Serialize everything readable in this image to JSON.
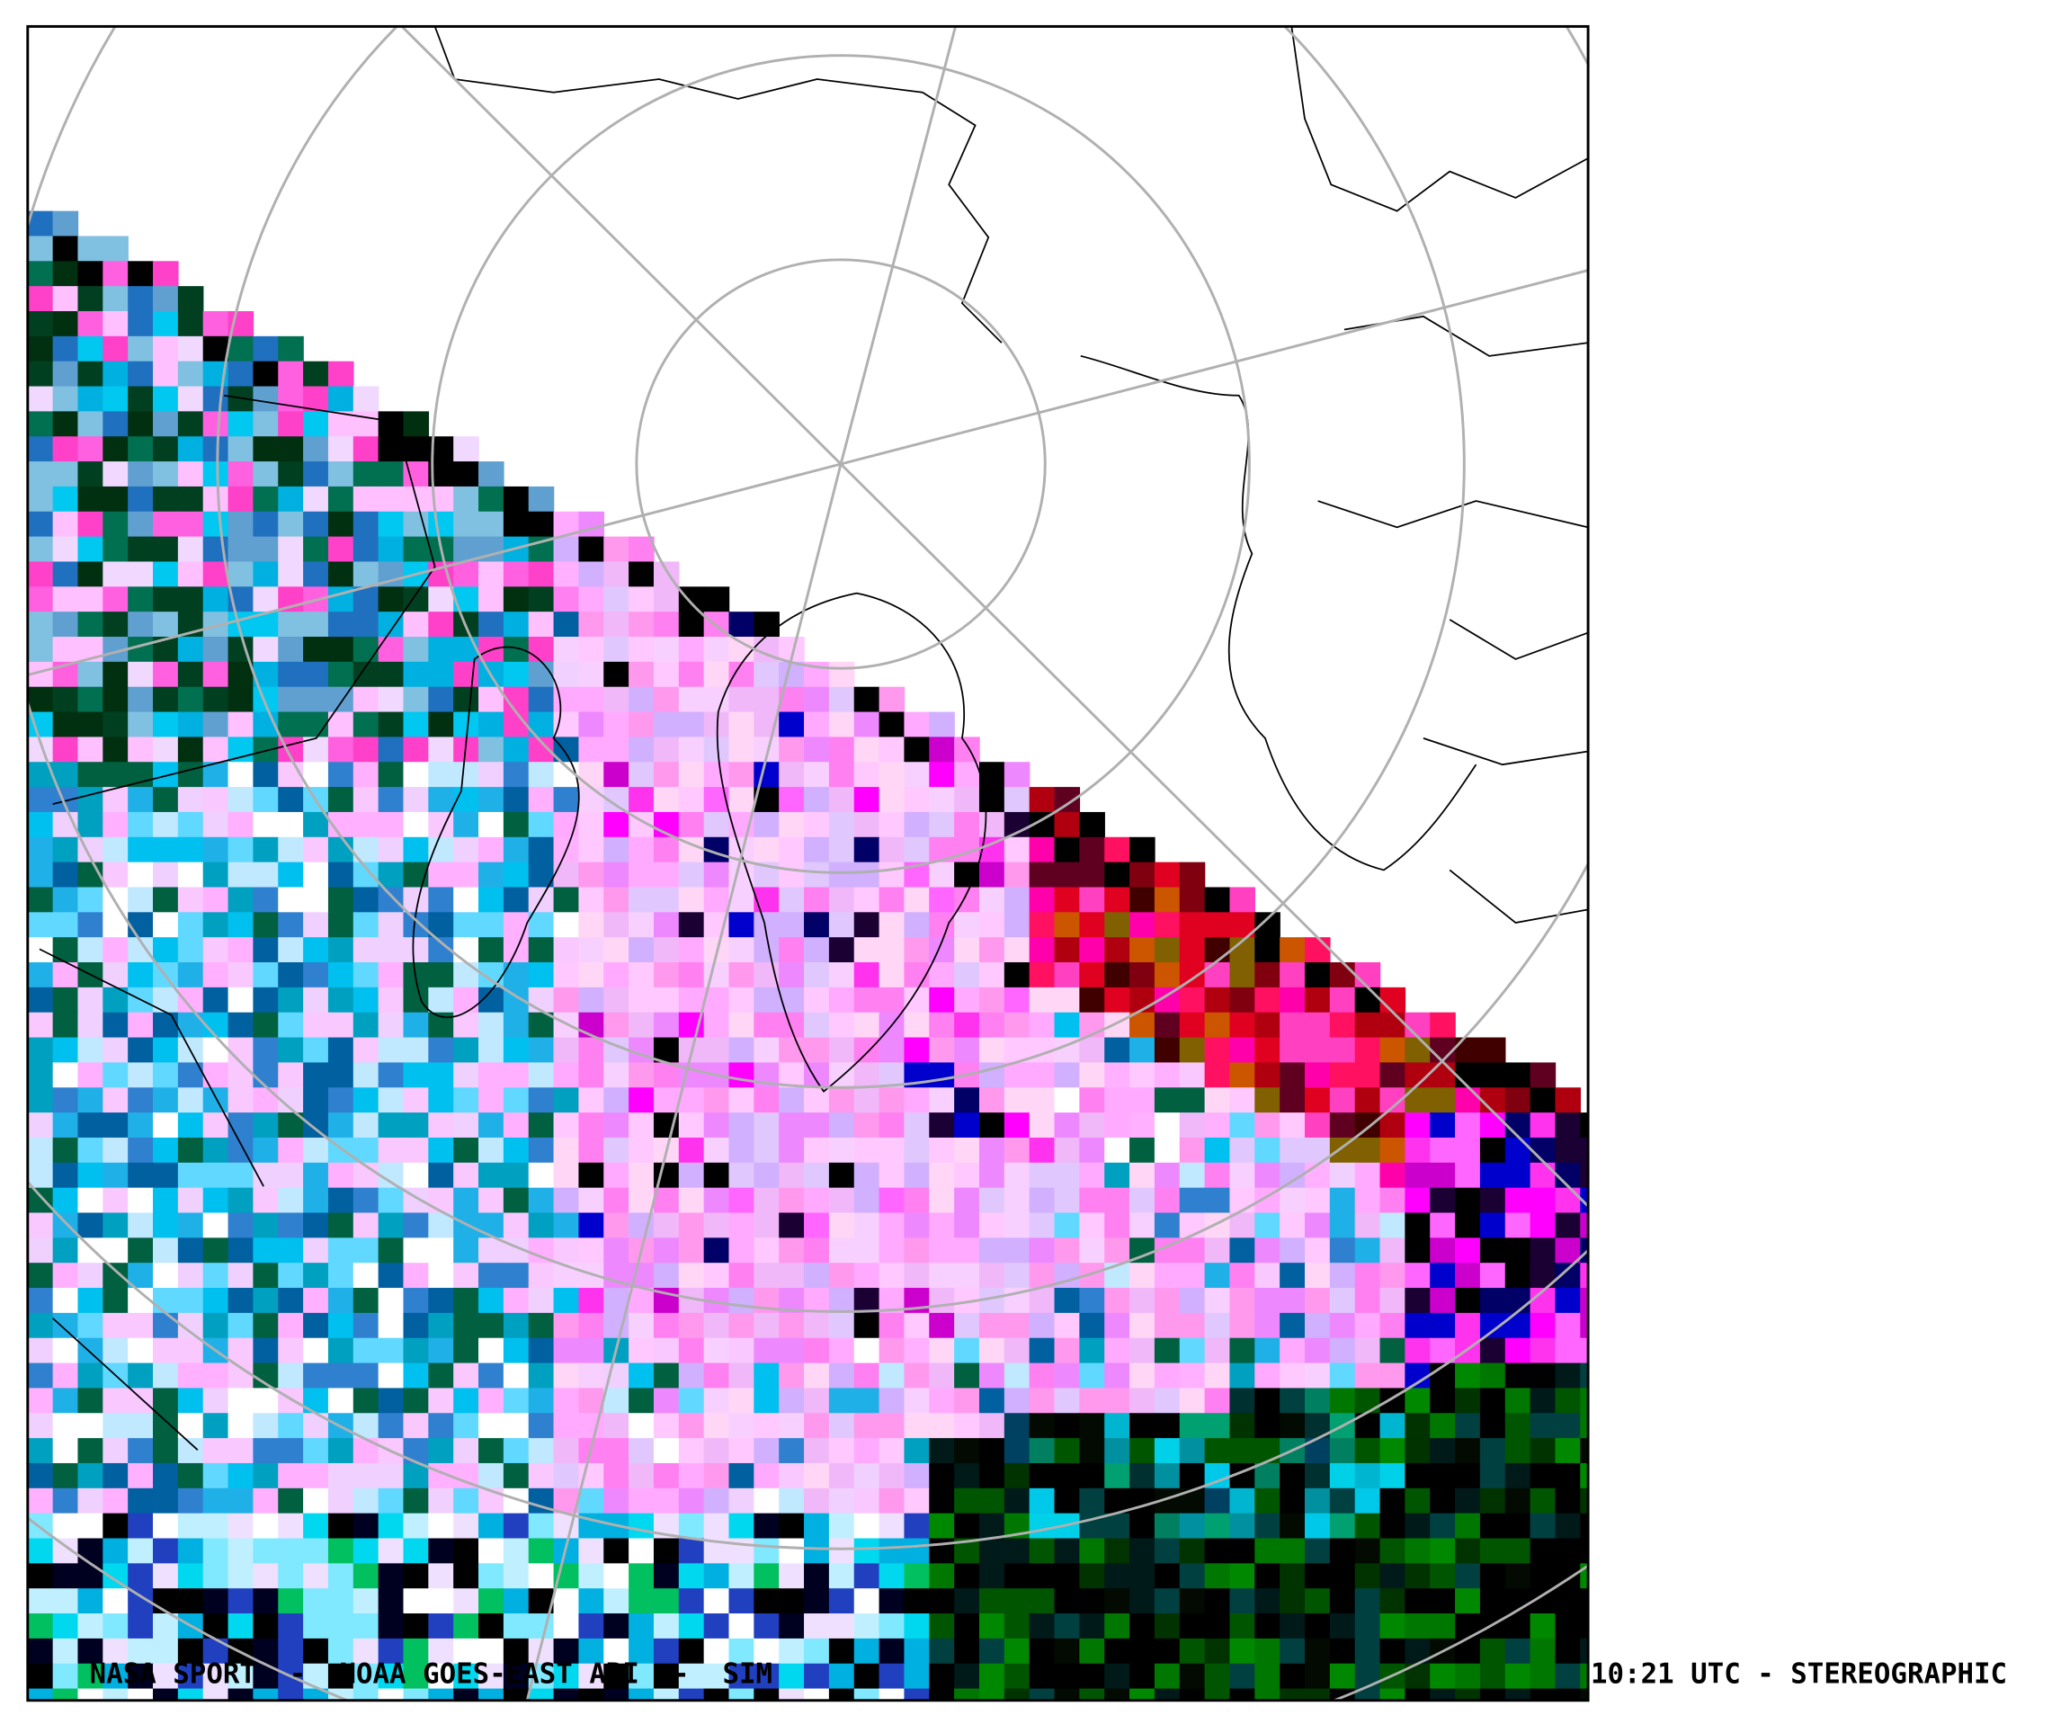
{
  "caption": {
    "left": "NASA SPORT  -  NOAA GOES-EAST ABI  -  SIM",
    "right": "10:21 UTC - STEREOGRAPHIC"
  }
}
